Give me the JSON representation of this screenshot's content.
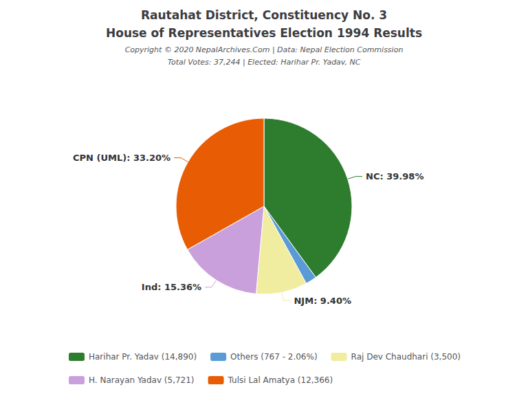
{
  "chart_data": {
    "type": "pie",
    "title": "Rautahat District, Constituency No. 3",
    "subtitle": "House of Representatives Election 1994 Results",
    "annotations": [
      "Copyright © 2020 NepalArchives.Com | Data: Nepal Election Commission",
      "Total Votes: 37,244 | Elected: Harihar Pr. Yadav, NC"
    ],
    "categories": [
      "Harihar Pr. Yadav (14,890)",
      "Others (767 - 2.06%)",
      "Raj Dev Chaudhari (3,500)",
      "H. Narayan Yadav (5,721)",
      "Tulsi Lal Amatya (12,366)"
    ],
    "values": [
      39.98,
      2.06,
      9.4,
      15.36,
      33.2
    ],
    "value_labels": [
      "NC: 39.98%",
      null,
      "NJM: 9.40%",
      "Ind: 15.36%",
      "CPN (UML): 33.20%"
    ],
    "colors": [
      "#2e7d2e",
      "#5b9bd5",
      "#f0eda0",
      "#c9a0dc",
      "#e85d04"
    ],
    "data_labels": true,
    "legend": "bottom"
  }
}
